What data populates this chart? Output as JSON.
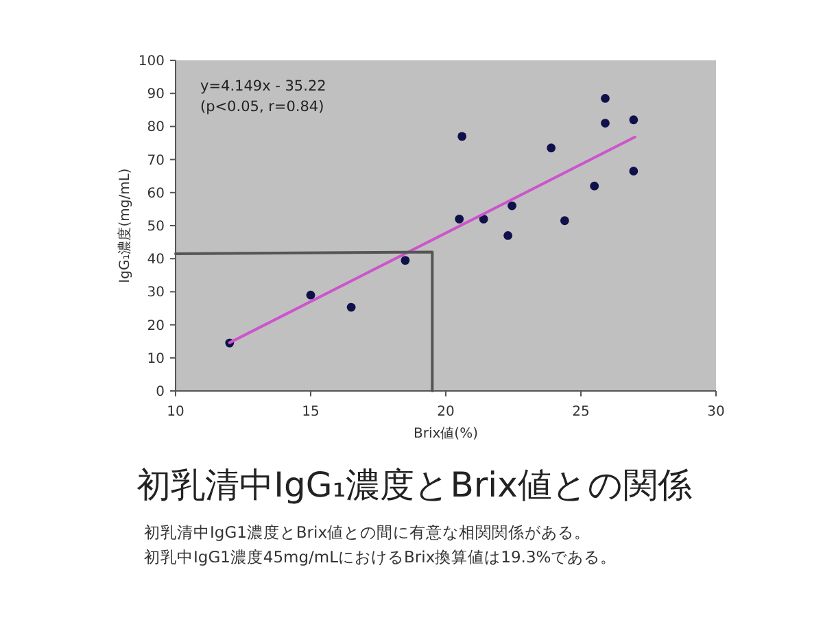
{
  "chart_data": {
    "type": "scatter",
    "title": "初乳清中IgG₁濃度とBrix値との関係",
    "xlabel": "Brix値(%)",
    "ylabel": "IgG₁濃度(mg/mL)",
    "xlim": [
      10,
      30
    ],
    "xticks": [
      10,
      15,
      20,
      25,
      30
    ],
    "ylim": [
      0,
      100
    ],
    "yticks": [
      0,
      10,
      20,
      30,
      40,
      50,
      60,
      70,
      80,
      90,
      100
    ],
    "grid": false,
    "series": [
      {
        "marker": "circle",
        "color": "#10104a",
        "x": [
          12.0,
          15.0,
          16.5,
          18.5,
          20.6,
          20.5,
          21.4,
          22.45,
          22.3,
          23.9,
          24.4,
          25.5,
          25.9,
          25.9,
          26.95,
          26.95
        ],
        "values": [
          14.5,
          29,
          25.3,
          39.5,
          77,
          52,
          52,
          56,
          47,
          73.5,
          51.5,
          62,
          88.5,
          81,
          82,
          66.5
        ]
      },
      {
        "type": "line",
        "color": "#cc55cc",
        "x": [
          12,
          27
        ],
        "values": [
          14.6,
          76.8
        ]
      },
      {
        "type": "line",
        "color": "#555555",
        "x": [
          10,
          19.5,
          19.5
        ],
        "values": [
          41.5,
          42,
          0
        ]
      }
    ],
    "annotations": [
      "y=4.149x - 35.22",
      "(p<0.05, r=0.84)",
      "初乳清中IgG1濃度とBrix値との間に有意な相関関係がある。",
      "初乳中IgG1濃度45mg/mLにおけるBrix換算値は19.3%である。"
    ]
  }
}
